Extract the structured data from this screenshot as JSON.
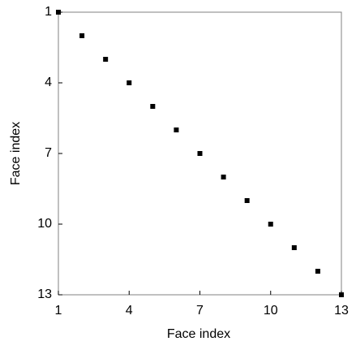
{
  "chart_data": {
    "type": "scatter",
    "xlabel": "Face index",
    "ylabel": "Face index",
    "x": [
      1,
      2,
      3,
      4,
      5,
      6,
      7,
      8,
      9,
      10,
      11,
      12,
      13
    ],
    "values": [
      1,
      2,
      3,
      4,
      5,
      6,
      7,
      8,
      9,
      10,
      11,
      12,
      13
    ],
    "color": "#000000",
    "xlim": [
      1,
      13
    ],
    "xticks": [
      1,
      4,
      7,
      10,
      13
    ],
    "ylim": [
      13,
      1
    ],
    "yticks": [
      1,
      4,
      7,
      10,
      13
    ],
    "grid": false
  }
}
